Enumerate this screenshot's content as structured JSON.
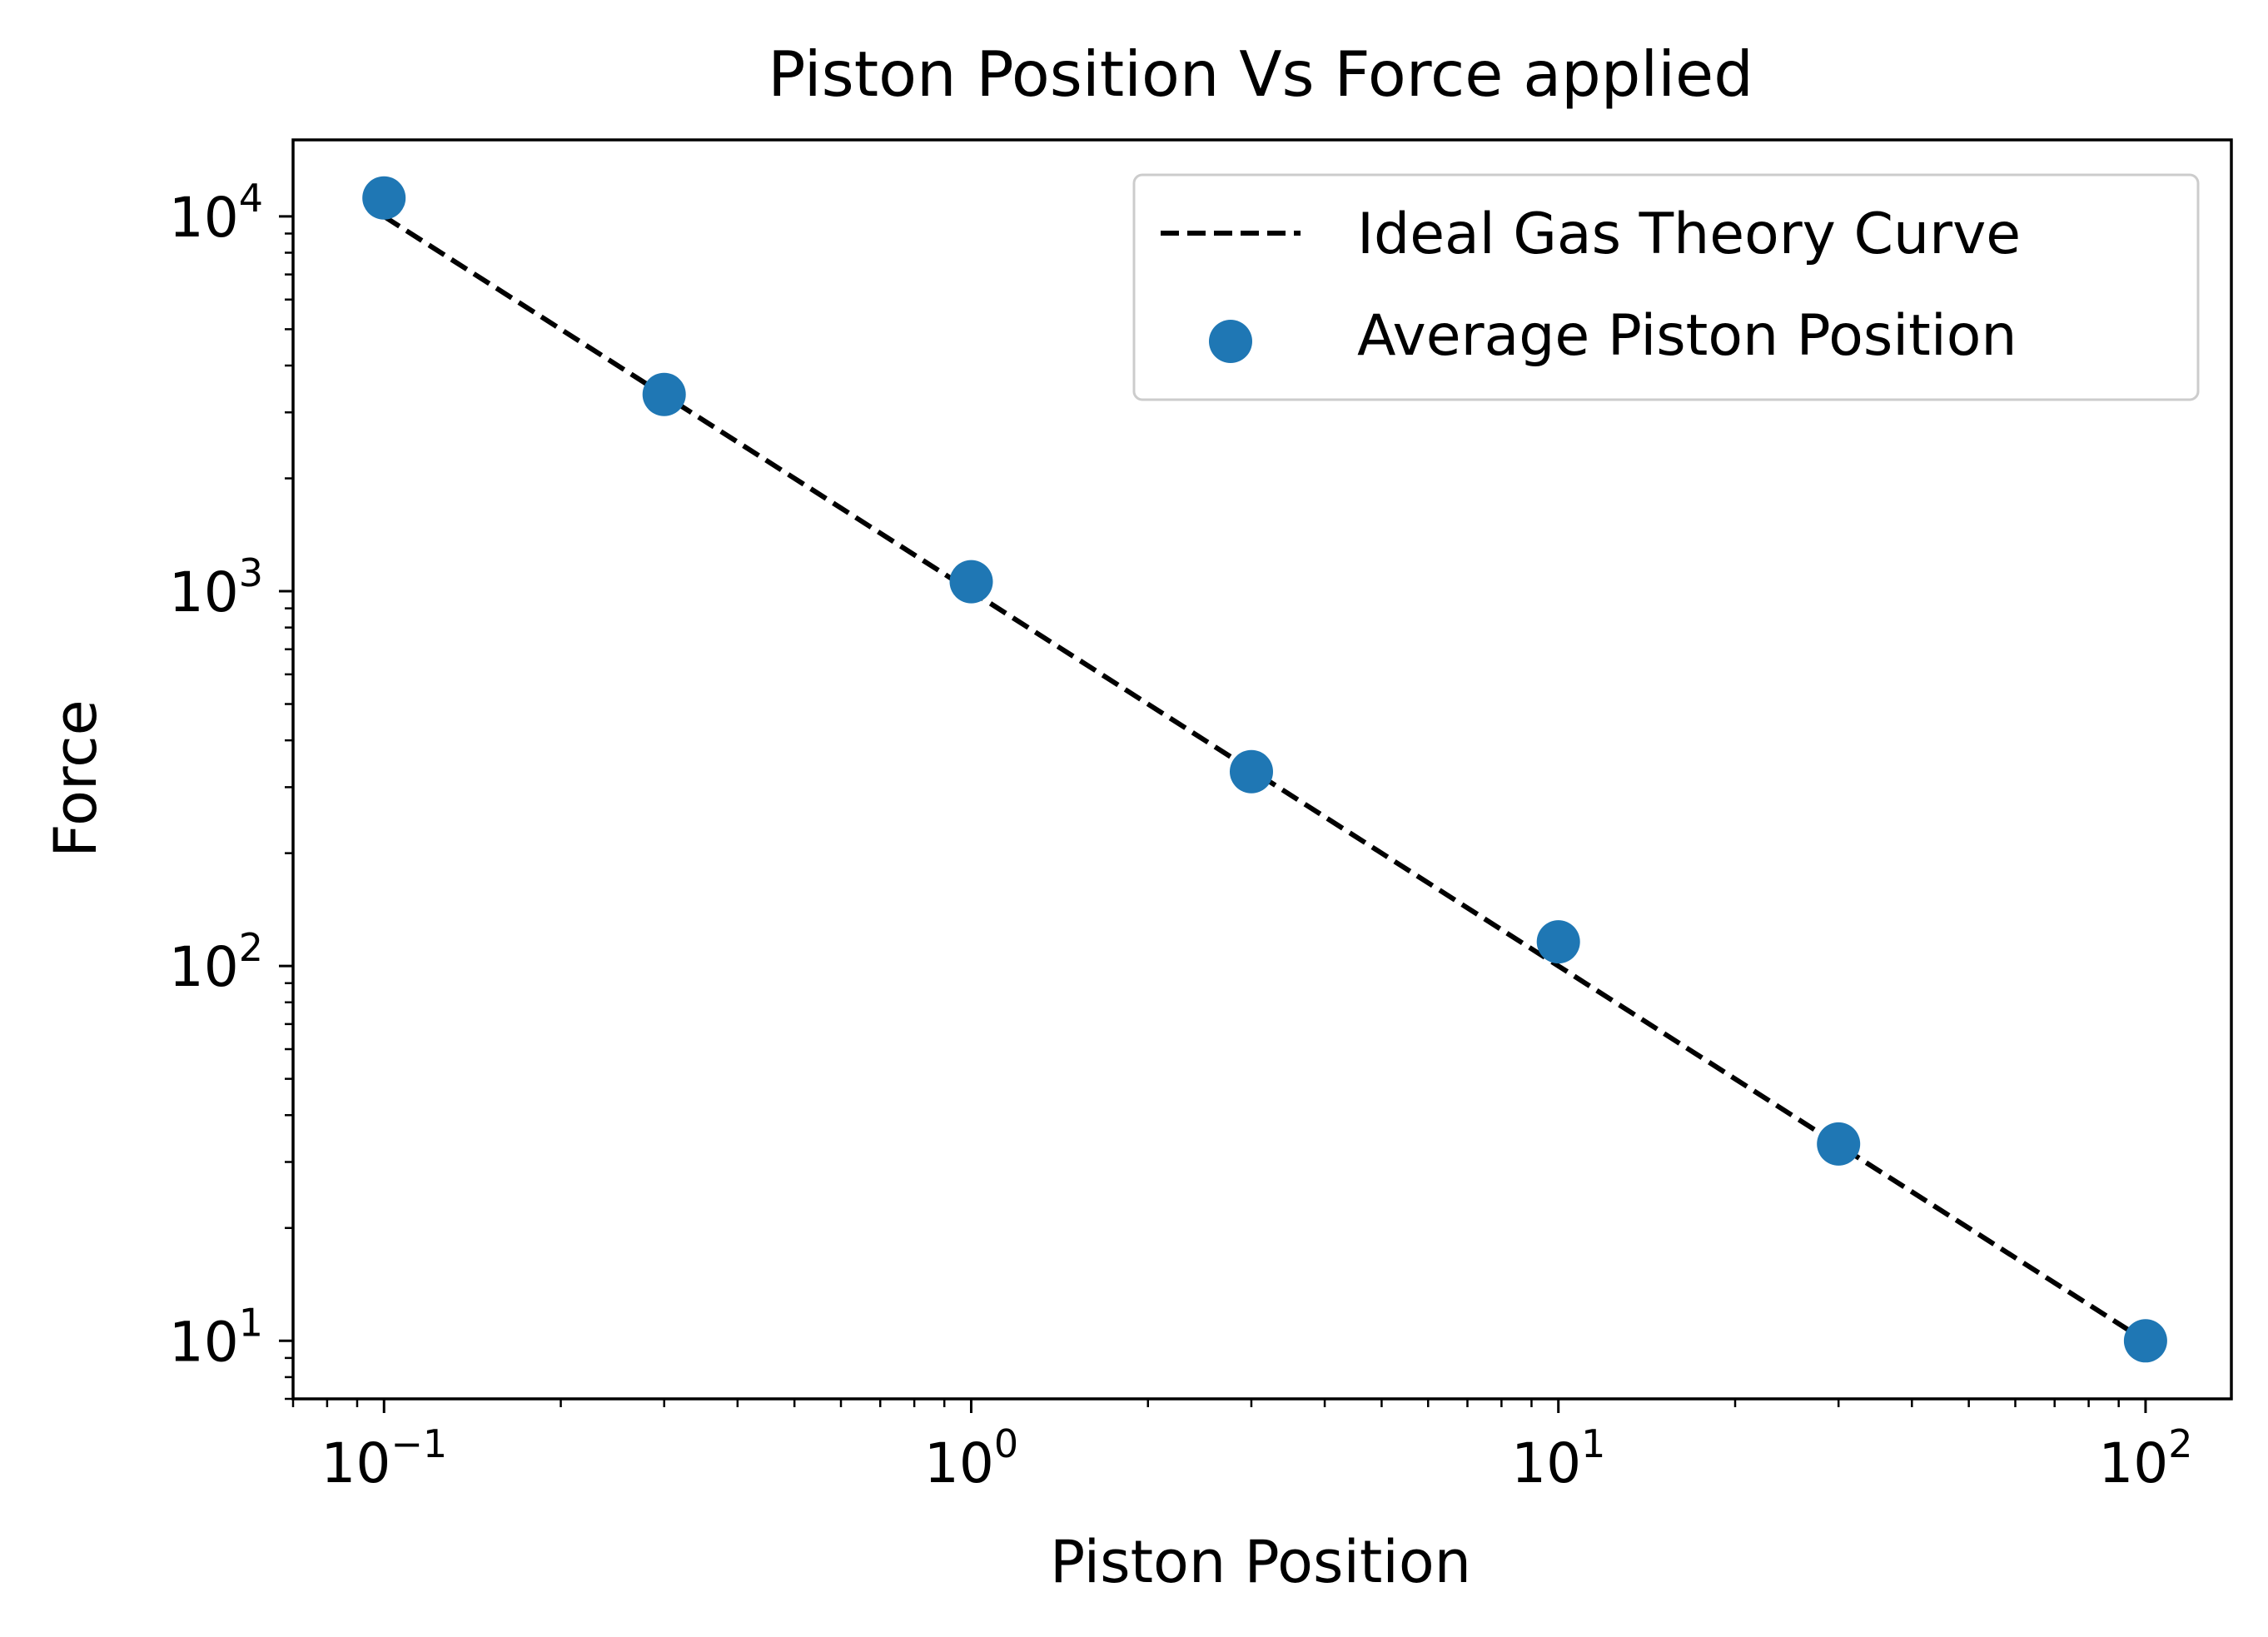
{
  "chart_data": {
    "type": "scatter",
    "title": "Piston Position Vs Force applied",
    "xlabel": "Piston Position",
    "ylabel": "Force",
    "xscale": "log",
    "yscale": "log",
    "xlim": [
      0.07,
      140
    ],
    "ylim": [
      7.0,
      16000
    ],
    "x_ticks": [
      {
        "value": 0.1,
        "base": "10",
        "exp": "−1"
      },
      {
        "value": 1,
        "base": "10",
        "exp": "0"
      },
      {
        "value": 10,
        "base": "10",
        "exp": "1"
      },
      {
        "value": 100,
        "base": "10",
        "exp": "2"
      }
    ],
    "y_ticks": [
      {
        "value": 10,
        "base": "10",
        "exp": "1"
      },
      {
        "value": 100,
        "base": "10",
        "exp": "2"
      },
      {
        "value": 1000,
        "base": "10",
        "exp": "3"
      },
      {
        "value": 10000,
        "base": "10",
        "exp": "4"
      }
    ],
    "grid": false,
    "legend_position": "top-right",
    "series": [
      {
        "name": "Ideal Gas Theory Curve",
        "kind": "line",
        "style": "dashed",
        "color": "#000000",
        "x": [
          0.1,
          0.3,
          1,
          3,
          10,
          30,
          100
        ],
        "y": [
          10000,
          3333.3,
          1000,
          333.3,
          100,
          33.3,
          10
        ]
      },
      {
        "name": "Average Piston Position",
        "kind": "scatter",
        "color": "#1f77b4",
        "x": [
          0.1,
          0.3,
          1,
          3,
          10,
          30,
          100
        ],
        "y": [
          11200,
          3350,
          1060,
          330,
          116,
          33.5,
          10
        ]
      }
    ]
  }
}
